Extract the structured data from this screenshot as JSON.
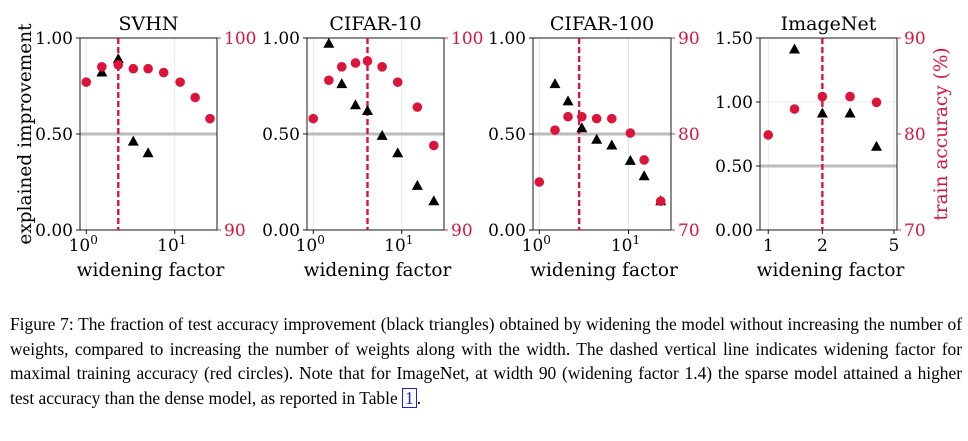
{
  "figure": {
    "left_axis_label": "explained improvement",
    "right_axis_label": "train accuracy (%)",
    "colors": {
      "triangle": "#000000",
      "circle": "#dc143c",
      "dashed": "#dc143c",
      "hline": "#bbbbbb",
      "grid": "#e0e0e0"
    }
  },
  "chart_data": [
    {
      "type": "scatter",
      "title": "SVHN",
      "xlabel": "widening factor",
      "xscale": "log",
      "xlim": [
        0.85,
        30
      ],
      "xticks": [
        {
          "v": 1,
          "label": "10^0"
        },
        {
          "v": 10,
          "label": "10^1"
        }
      ],
      "ylim": [
        0,
        1.0
      ],
      "yticks": [
        "0.00",
        "0.50",
        "1.00"
      ],
      "y2lim": [
        90,
        100
      ],
      "y2ticks": [
        "90",
        "100"
      ],
      "hline": 0.5,
      "vline": 2.3,
      "series": [
        {
          "name": "explained improvement",
          "marker": "triangle",
          "axis": "left",
          "x": [
            1.5,
            2.3,
            3.4,
            5.0
          ],
          "y": [
            0.82,
            0.89,
            0.46,
            0.4
          ]
        },
        {
          "name": "train accuracy",
          "marker": "circle",
          "axis": "right",
          "x": [
            1.0,
            1.5,
            2.3,
            3.4,
            5.0,
            7.5,
            11.5,
            17.0,
            25.0
          ],
          "y": [
            97.7,
            98.5,
            98.6,
            98.4,
            98.4,
            98.2,
            97.7,
            96.9,
            95.8
          ]
        }
      ]
    },
    {
      "type": "scatter",
      "title": "CIFAR-10",
      "xlabel": "widening factor",
      "xscale": "log",
      "xlim": [
        0.85,
        30
      ],
      "xticks": [
        {
          "v": 1,
          "label": "10^0"
        },
        {
          "v": 10,
          "label": "10^1"
        }
      ],
      "ylim": [
        0,
        1.0
      ],
      "yticks": [
        "0.00",
        "0.50",
        "1.00"
      ],
      "y2lim": [
        90,
        100
      ],
      "y2ticks": [
        "90",
        "100"
      ],
      "hline": 0.5,
      "vline": 4.1,
      "series": [
        {
          "name": "explained improvement",
          "marker": "triangle",
          "axis": "left",
          "x": [
            1.5,
            2.1,
            3.0,
            4.1,
            6.0,
            9.0,
            15.0,
            23.0
          ],
          "y": [
            0.97,
            0.76,
            0.65,
            0.62,
            0.49,
            0.4,
            0.23,
            0.15
          ]
        },
        {
          "name": "train accuracy",
          "marker": "circle",
          "axis": "right",
          "x": [
            1.0,
            1.5,
            2.1,
            3.0,
            4.1,
            6.0,
            9.0,
            15.0,
            23.0
          ],
          "y": [
            95.8,
            97.8,
            98.5,
            98.7,
            98.8,
            98.5,
            97.7,
            96.4,
            94.4
          ]
        }
      ]
    },
    {
      "type": "scatter",
      "title": "CIFAR-100",
      "xlabel": "widening factor",
      "xscale": "log",
      "xlim": [
        0.85,
        30
      ],
      "xticks": [
        {
          "v": 1,
          "label": "10^0"
        },
        {
          "v": 10,
          "label": "10^1"
        }
      ],
      "ylim": [
        0,
        1.0
      ],
      "yticks": [
        "0.00",
        "0.50",
        "1.00"
      ],
      "y2lim": [
        70,
        90
      ],
      "y2ticks": [
        "70",
        "80",
        "90"
      ],
      "hline": 0.5,
      "vline": 2.8,
      "series": [
        {
          "name": "explained improvement",
          "marker": "triangle",
          "axis": "left",
          "x": [
            1.5,
            2.1,
            3.0,
            4.4,
            6.5,
            10.5,
            15.0,
            23.0
          ],
          "y": [
            0.76,
            0.67,
            0.53,
            0.47,
            0.44,
            0.36,
            0.28,
            0.15
          ]
        },
        {
          "name": "train accuracy",
          "marker": "circle",
          "axis": "right",
          "x": [
            1.0,
            1.5,
            2.1,
            3.0,
            4.4,
            6.5,
            10.5,
            15.0,
            23.0
          ],
          "y": [
            75.0,
            80.4,
            81.8,
            81.8,
            81.6,
            81.6,
            80.1,
            77.3,
            73.0
          ]
        }
      ]
    },
    {
      "type": "scatter",
      "title": "ImageNet",
      "xlabel": "widening factor",
      "xscale": "log",
      "xlim": [
        0.9,
        5.2
      ],
      "xticks": [
        {
          "v": 1,
          "label": "1"
        },
        {
          "v": 2,
          "label": "2"
        },
        {
          "v": 5,
          "label": "5"
        }
      ],
      "ylim": [
        0,
        1.5
      ],
      "yticks": [
        "0.00",
        "0.50",
        "1.00",
        "1.50"
      ],
      "y2lim": [
        70,
        90
      ],
      "y2ticks": [
        "70",
        "80",
        "90"
      ],
      "hline": 0.5,
      "vline": 2.0,
      "series": [
        {
          "name": "explained improvement",
          "marker": "triangle",
          "axis": "left",
          "x": [
            1.4,
            2.0,
            2.85,
            4.0
          ],
          "y": [
            1.41,
            0.91,
            0.91,
            0.65
          ]
        },
        {
          "name": "train accuracy",
          "marker": "circle",
          "axis": "right",
          "x": [
            1.0,
            1.4,
            2.0,
            2.85,
            4.0
          ],
          "y": [
            79.9,
            82.6,
            83.9,
            83.9,
            83.3
          ]
        }
      ]
    }
  ],
  "caption": {
    "label": "Figure 7:",
    "text": "The fraction of test accuracy improvement (black triangles) obtained by widening the model without increasing the number of weights, compared to increasing the number of weights along with the width. The dashed vertical line indicates widening factor for maximal training accuracy (red circles). Note that for ImageNet, at width 90 (widening factor 1.4) the sparse model attained a higher test accuracy than the dense model, as reported in Table",
    "ref": "1",
    "end": "."
  }
}
